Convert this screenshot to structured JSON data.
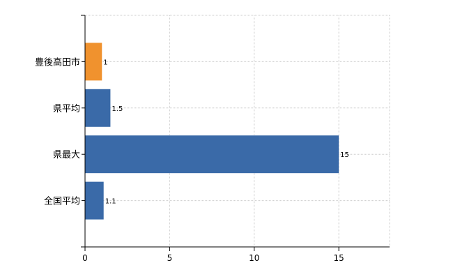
{
  "chart_data": {
    "type": "bar",
    "orientation": "horizontal",
    "categories": [
      "豊後高田市",
      "県平均",
      "県最大",
      "全国平均"
    ],
    "values": [
      1,
      1.5,
      15,
      1.1
    ],
    "data_labels": [
      "1",
      "1.5",
      "15",
      "1.1"
    ],
    "bar_colors": [
      "#f0922e",
      "#3a6aa8",
      "#3a6aa8",
      "#3a6aa8"
    ],
    "xlim": [
      0,
      18
    ],
    "x_ticks": [
      0,
      5,
      10,
      15
    ],
    "x_tick_labels": [
      "0",
      "5",
      "10",
      "15"
    ],
    "grid": true,
    "title": "",
    "xlabel": "",
    "ylabel": ""
  }
}
